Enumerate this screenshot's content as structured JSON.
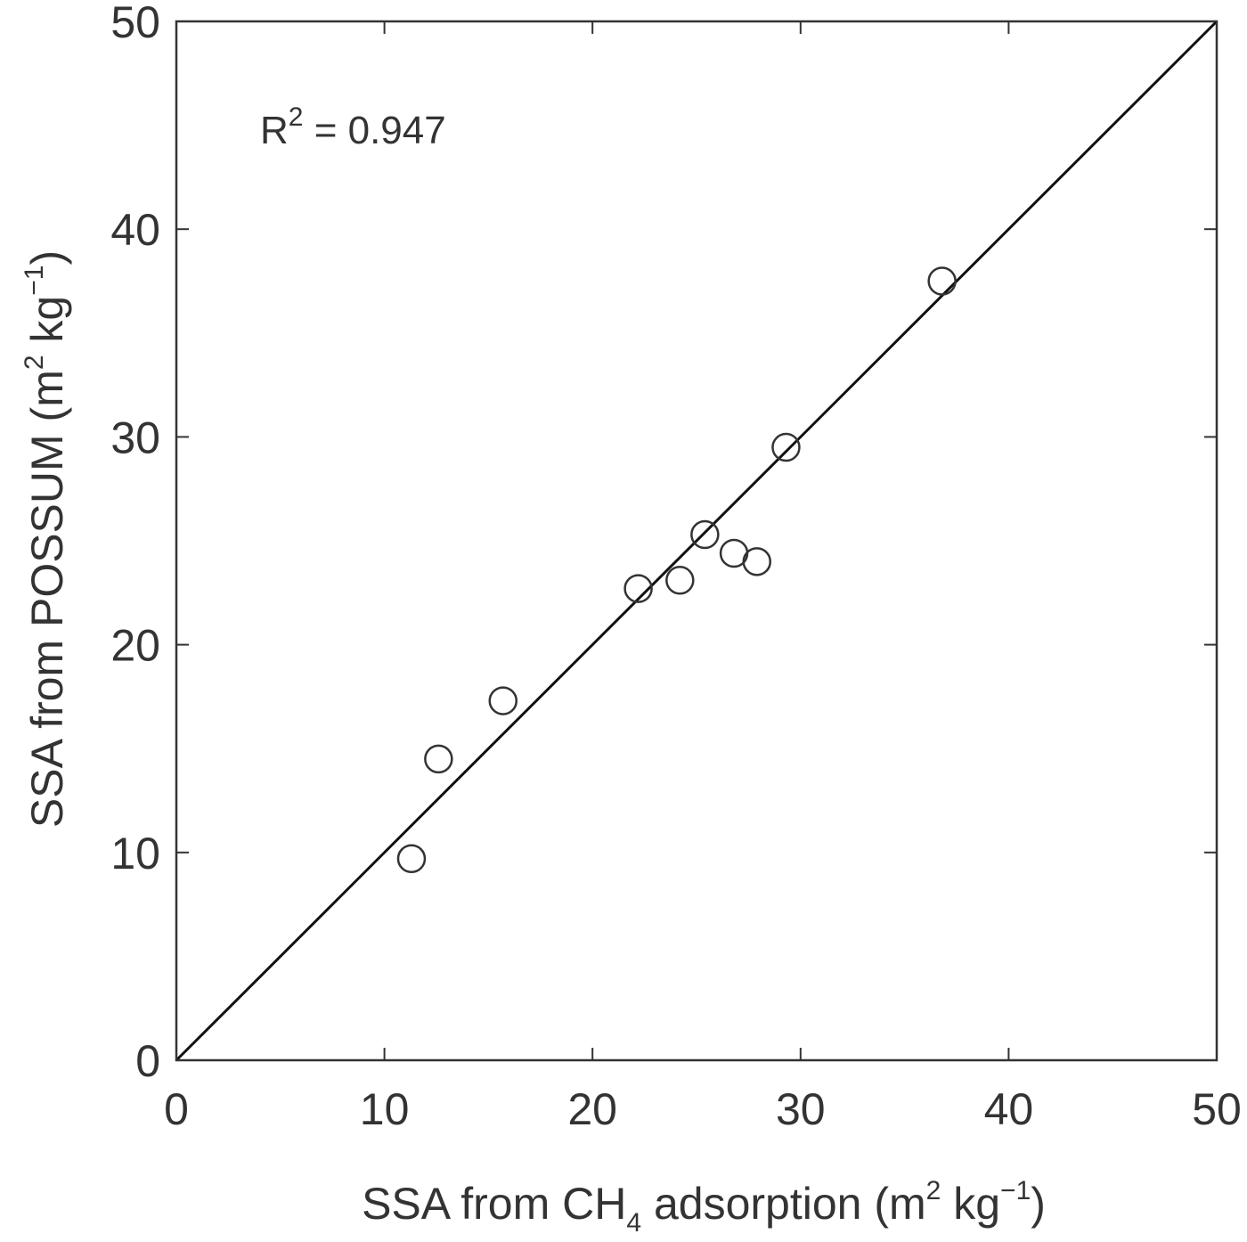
{
  "chart_data": {
    "type": "scatter",
    "title": "",
    "xlabel": {
      "prefix": "SSA from CH",
      "subscript": "4",
      "middle": " adsorption (m",
      "unit_sup": "2",
      "unit_mid": " kg",
      "unit_sup2": "−1",
      "suffix": ")"
    },
    "ylabel": {
      "prefix": "SSA from POSSUM  (m",
      "unit_sup": "2",
      "unit_mid": " kg",
      "unit_sup2": "−1",
      "suffix": ")"
    },
    "xlim": [
      0,
      50
    ],
    "ylim": [
      0,
      50
    ],
    "xticks": [
      0,
      10,
      20,
      30,
      40,
      50
    ],
    "yticks": [
      0,
      10,
      20,
      30,
      40,
      50
    ],
    "grid": false,
    "annotation": {
      "prefix": "R",
      "sup": "2",
      "suffix": " = 0.947"
    },
    "reference_line": {
      "type": "1:1",
      "from": [
        0,
        0
      ],
      "to": [
        50,
        50
      ]
    },
    "series": [
      {
        "marker": "open-circle",
        "x": [
          11.3,
          12.6,
          15.7,
          22.2,
          24.2,
          25.4,
          26.8,
          27.9,
          29.3,
          36.8
        ],
        "y": [
          9.7,
          14.5,
          17.3,
          22.7,
          23.1,
          25.3,
          24.4,
          24.0,
          29.5,
          37.5
        ]
      }
    ],
    "colors": {
      "axes": "#333333",
      "line": "#111111",
      "marker": "#333333",
      "background": "#ffffff"
    }
  }
}
